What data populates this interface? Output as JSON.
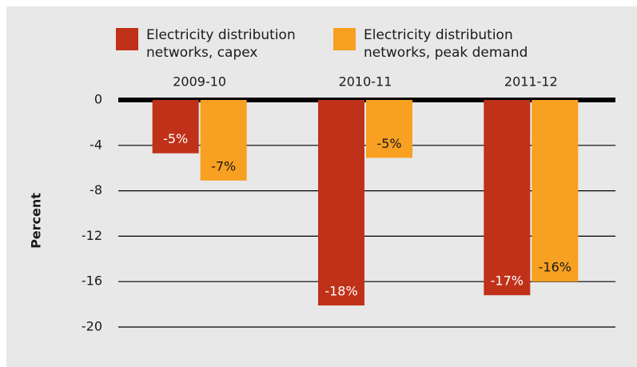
{
  "chart_data": {
    "type": "bar",
    "y_label": "Percent",
    "categories": [
      "2009-10",
      "2010-11",
      "2011-12"
    ],
    "series": [
      {
        "name": "Electricity distribution networks, capex",
        "color": "#c0311a",
        "values": [
          -4.7,
          -18.1,
          -17.2
        ],
        "value_labels": [
          "-5%",
          "-18%",
          "-17%"
        ],
        "label_color": "#ffffff"
      },
      {
        "name": "Electricity distribution networks, peak demand",
        "color": "#f7a021",
        "values": [
          -7.1,
          -5.1,
          -16.0
        ],
        "value_labels": [
          "-7%",
          "-5%",
          "-16%"
        ],
        "label_color": "#1a1a1a"
      }
    ],
    "ylim": [
      -20,
      0
    ],
    "yticks": [
      0,
      -4,
      -8,
      -12,
      -16,
      -20
    ],
    "grid": true
  }
}
